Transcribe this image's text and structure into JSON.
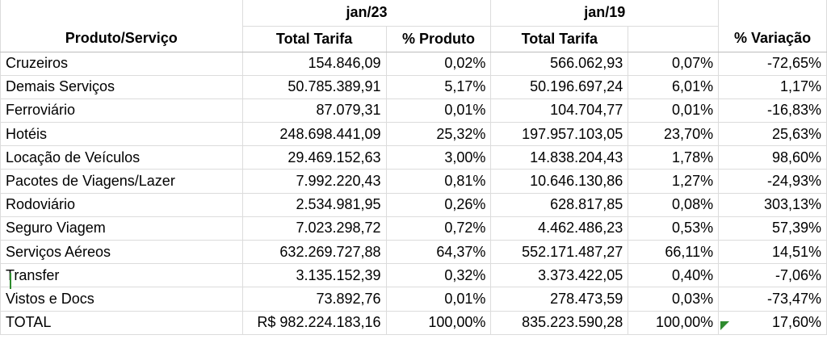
{
  "header": {
    "group1": "jan/23",
    "group2": "jan/19",
    "col_product": "Produto/Serviço",
    "col_total1": "Total Tarifa",
    "col_pct1": "% Produto",
    "col_total2": "Total Tarifa",
    "col_pct2": "",
    "col_var": "% Variação"
  },
  "rows": [
    {
      "produto": "Cruzeiros",
      "total23": "154.846,09",
      "pct23": "0,02%",
      "total19": "566.062,93",
      "pct19": "0,07%",
      "var": "-72,65%"
    },
    {
      "produto": "Demais Serviços",
      "total23": "50.785.389,91",
      "pct23": "5,17%",
      "total19": "50.196.697,24",
      "pct19": "6,01%",
      "var": "1,17%"
    },
    {
      "produto": "Ferroviário",
      "total23": "87.079,31",
      "pct23": "0,01%",
      "total19": "104.704,77",
      "pct19": "0,01%",
      "var": "-16,83%"
    },
    {
      "produto": "Hotéis",
      "total23": "248.698.441,09",
      "pct23": "25,32%",
      "total19": "197.957.103,05",
      "pct19": "23,70%",
      "var": "25,63%"
    },
    {
      "produto": "Locação de Veículos",
      "total23": "29.469.152,63",
      "pct23": "3,00%",
      "total19": "14.838.204,43",
      "pct19": "1,78%",
      "var": "98,60%"
    },
    {
      "produto": "Pacotes de Viagens/Lazer",
      "total23": "7.992.220,43",
      "pct23": "0,81%",
      "total19": "10.646.130,86",
      "pct19": "1,27%",
      "var": "-24,93%"
    },
    {
      "produto": "Rodoviário",
      "total23": "2.534.981,95",
      "pct23": "0,26%",
      "total19": "628.817,85",
      "pct19": "0,08%",
      "var": "303,13%"
    },
    {
      "produto": "Seguro Viagem",
      "total23": "7.023.298,72",
      "pct23": "0,72%",
      "total19": "4.462.486,23",
      "pct19": "0,53%",
      "var": "57,39%"
    },
    {
      "produto": "Serviços Aéreos",
      "total23": "632.269.727,88",
      "pct23": "64,37%",
      "total19": "552.171.487,27",
      "pct19": "66,11%",
      "var": "14,51%"
    },
    {
      "produto": "Transfer",
      "total23": "3.135.152,39",
      "pct23": "0,32%",
      "total19": "3.373.422,05",
      "pct19": "0,40%",
      "var": "-7,06%"
    },
    {
      "produto": "Vistos e Docs",
      "total23": "73.892,76",
      "pct23": "0,01%",
      "total19": "278.473,59",
      "pct19": "0,03%",
      "var": "-73,47%"
    },
    {
      "produto": "TOTAL",
      "total23": "R$ 982.224.183,16",
      "pct23": "100,00%",
      "total19": "835.223.590,28",
      "pct19": "100,00%",
      "var": "17,60%"
    }
  ],
  "colors": {
    "grid": "#dcdcdc",
    "indicator": "#2e8b2e"
  }
}
